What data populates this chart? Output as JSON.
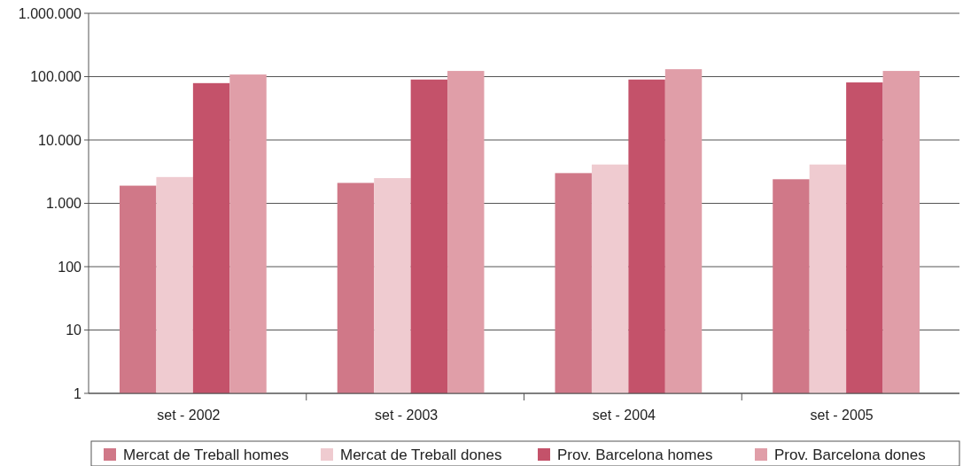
{
  "chart_data": {
    "type": "bar",
    "categories": [
      "set - 2002",
      "set - 2003",
      "set - 2004",
      "set - 2005"
    ],
    "series": [
      {
        "name": "Mercat de Treball homes",
        "color": "#d07888",
        "values": [
          1900,
          2100,
          3000,
          2400
        ]
      },
      {
        "name": "Mercat de Treball dones",
        "color": "#efcbd0",
        "values": [
          2600,
          2500,
          4100,
          4100
        ]
      },
      {
        "name": "Prov. Barcelona homes",
        "color": "#c4526a",
        "values": [
          79000,
          90000,
          90000,
          81000
        ]
      },
      {
        "name": "Prov. Barcelona dones",
        "color": "#e09ea8",
        "values": [
          108000,
          123000,
          131000,
          123000
        ]
      }
    ],
    "log": true,
    "ylim": [
      1,
      1000000
    ],
    "yticks": [
      1,
      10,
      100,
      {
        "value": 1000,
        "label": "1.000"
      },
      {
        "value": 10000,
        "label": "10.000"
      },
      {
        "value": 100000,
        "label": "100.000"
      },
      {
        "value": 1000000,
        "label": "1.000.000"
      }
    ],
    "grid": "y",
    "legend": "bottom"
  }
}
